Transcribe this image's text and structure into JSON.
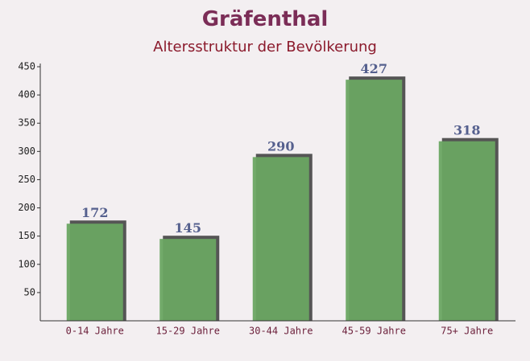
{
  "chart_data": {
    "type": "bar",
    "title": "Gräfenthal",
    "subtitle": "Altersstruktur der Bevölkerung",
    "categories": [
      "0-14 Jahre",
      "15-29 Jahre",
      "30-44 Jahre",
      "45-59 Jahre",
      "75+ Jahre"
    ],
    "values": [
      172,
      145,
      290,
      427,
      318
    ],
    "color": "#6aa562",
    "ylim": [
      0,
      450
    ],
    "yticks": [
      50,
      100,
      150,
      200,
      250,
      300,
      350,
      400,
      450
    ],
    "grid": false
  }
}
